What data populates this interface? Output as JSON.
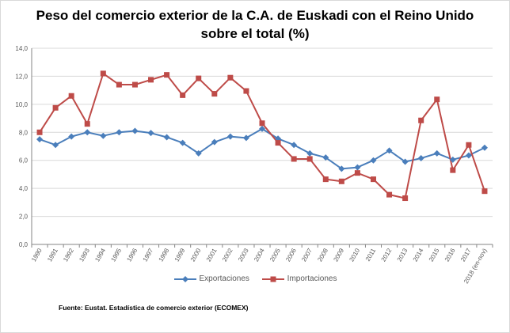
{
  "chart_data": {
    "type": "line",
    "title_line1": "Peso del comercio exterior de la C.A. de Euskadi con el Reino Unido",
    "title_line2": "sobre el total (%)",
    "source": "Fuente: Eustat. Estadística de comercio  exterior (ECOMEX)",
    "categories": [
      "1990",
      "1991",
      "1992",
      "1993",
      "1994",
      "1995",
      "1996",
      "1997",
      "1998",
      "1999",
      "2000",
      "2001",
      "2002",
      "2003",
      "2004",
      "2005",
      "2006",
      "2007",
      "2008",
      "2009",
      "2010",
      "2011",
      "2012",
      "2013",
      "2014",
      "2015",
      "2016",
      "2017",
      "2018 (en-nov)"
    ],
    "yticks": [
      "0,0",
      "2,0",
      "4,0",
      "6,0",
      "8,0",
      "10,0",
      "12,0",
      "14,0"
    ],
    "ylim": [
      0,
      14
    ],
    "grid": true,
    "legend_position": "bottom",
    "series": [
      {
        "name": "Exportaciones",
        "color": "#4a7ebb",
        "marker": "diamond",
        "values": [
          7.5,
          7.1,
          7.7,
          8.0,
          7.75,
          8.0,
          8.1,
          7.95,
          7.65,
          7.25,
          6.5,
          7.3,
          7.7,
          7.6,
          8.25,
          7.55,
          7.1,
          6.5,
          6.2,
          5.4,
          5.5,
          6.0,
          6.7,
          5.9,
          6.15,
          6.5,
          6.05,
          6.35,
          6.9
        ]
      },
      {
        "name": "Importaciones",
        "color": "#be4b48",
        "marker": "square",
        "values": [
          8.0,
          9.75,
          10.6,
          8.6,
          12.2,
          11.4,
          11.4,
          11.75,
          12.1,
          10.65,
          11.85,
          10.75,
          11.9,
          10.95,
          8.65,
          7.25,
          6.1,
          6.1,
          4.65,
          4.5,
          5.1,
          4.65,
          3.55,
          3.3,
          8.85,
          10.35,
          5.3,
          7.1,
          3.8
        ]
      }
    ]
  }
}
